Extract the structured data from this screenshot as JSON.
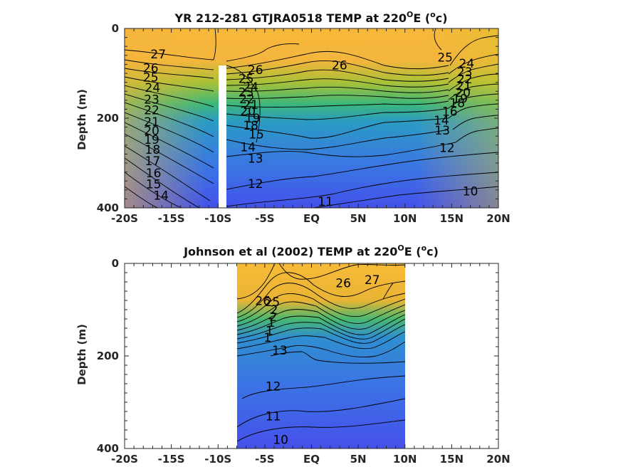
{
  "chart_data": [
    {
      "type": "contour",
      "title_parts": [
        "YR 212-281 GTJRA0518 TEMP at 220",
        "O",
        "E (",
        "o",
        "c)"
      ],
      "ylabel": "Depth (m)",
      "xlim": [
        -20,
        20
      ],
      "ylim": [
        0,
        400
      ],
      "x_ticks": [
        -20,
        -15,
        -10,
        -5,
        0,
        5,
        10,
        15,
        20
      ],
      "x_tick_labels": [
        "-20S",
        "-15S",
        "-10S",
        "-5S",
        "EQ",
        "5N",
        "10N",
        "15N",
        "20N"
      ],
      "y_ticks": [
        0,
        200,
        400
      ],
      "y_tick_labels": [
        "0",
        "200",
        "400"
      ],
      "data_extent": {
        "x": [
          -20,
          20
        ],
        "depth": [
          0,
          390
        ]
      },
      "missing_column_lat": -10,
      "contour_levels": [
        10,
        11,
        12,
        13,
        14,
        15,
        16,
        17,
        18,
        19,
        20,
        21,
        22,
        23,
        24,
        25,
        26,
        27
      ],
      "contour_labels": [
        {
          "text": "27",
          "lat": -16.4,
          "depth": 57
        },
        {
          "text": "26",
          "lat": -17.2,
          "depth": 88
        },
        {
          "text": "25",
          "lat": -17.2,
          "depth": 109
        },
        {
          "text": "24",
          "lat": -17.0,
          "depth": 132
        },
        {
          "text": "23",
          "lat": -17.1,
          "depth": 158
        },
        {
          "text": "22",
          "lat": -17.1,
          "depth": 182
        },
        {
          "text": "21",
          "lat": -17.1,
          "depth": 208
        },
        {
          "text": "20",
          "lat": -17.1,
          "depth": 228
        },
        {
          "text": "19",
          "lat": -17.1,
          "depth": 248
        },
        {
          "text": "18",
          "lat": -17.0,
          "depth": 270
        },
        {
          "text": "17",
          "lat": -17.0,
          "depth": 295
        },
        {
          "text": "16",
          "lat": -16.9,
          "depth": 322
        },
        {
          "text": "15",
          "lat": -16.9,
          "depth": 347
        },
        {
          "text": "14",
          "lat": -16.1,
          "depth": 372
        },
        {
          "text": "26",
          "lat": -6.0,
          "depth": 92
        },
        {
          "text": "25",
          "lat": -7.0,
          "depth": 112
        },
        {
          "text": "24",
          "lat": -6.5,
          "depth": 130
        },
        {
          "text": "23",
          "lat": -7.0,
          "depth": 142
        },
        {
          "text": "22",
          "lat": -6.9,
          "depth": 157
        },
        {
          "text": "21",
          "lat": -6.5,
          "depth": 170
        },
        {
          "text": "20",
          "lat": -6.8,
          "depth": 184
        },
        {
          "text": "19",
          "lat": -6.3,
          "depth": 200
        },
        {
          "text": "18",
          "lat": -6.5,
          "depth": 216
        },
        {
          "text": "15",
          "lat": -5.9,
          "depth": 236
        },
        {
          "text": "14",
          "lat": -6.8,
          "depth": 264
        },
        {
          "text": "13",
          "lat": -6.0,
          "depth": 290
        },
        {
          "text": "12",
          "lat": -6.0,
          "depth": 346
        },
        {
          "text": "11",
          "lat": 1.5,
          "depth": 386
        },
        {
          "text": "26",
          "lat": 3.0,
          "depth": 82
        },
        {
          "text": "25",
          "lat": 14.3,
          "depth": 64
        },
        {
          "text": "24",
          "lat": 16.6,
          "depth": 78
        },
        {
          "text": "23",
          "lat": 16.4,
          "depth": 97
        },
        {
          "text": "22",
          "lat": 16.4,
          "depth": 113
        },
        {
          "text": "21",
          "lat": 16.3,
          "depth": 128
        },
        {
          "text": "20",
          "lat": 16.2,
          "depth": 143
        },
        {
          "text": "19",
          "lat": 15.9,
          "depth": 156
        },
        {
          "text": "18",
          "lat": 15.6,
          "depth": 166
        },
        {
          "text": "16",
          "lat": 14.8,
          "depth": 185
        },
        {
          "text": "14",
          "lat": 13.9,
          "depth": 205
        },
        {
          "text": "13",
          "lat": 14.0,
          "depth": 227
        },
        {
          "text": "12",
          "lat": 14.5,
          "depth": 266
        },
        {
          "text": "10",
          "lat": 17.0,
          "depth": 363
        }
      ]
    },
    {
      "type": "contour",
      "title_parts": [
        "Johnson et al (2002) TEMP at 220",
        "O",
        "E (",
        "o",
        "c)"
      ],
      "ylabel": "Depth (m)",
      "xlim": [
        -20,
        20
      ],
      "ylim": [
        0,
        400
      ],
      "x_ticks": [
        -20,
        -15,
        -10,
        -5,
        0,
        5,
        10,
        15,
        20
      ],
      "x_tick_labels": [
        "-20S",
        "-15S",
        "-10S",
        "-5S",
        "EQ",
        "5N",
        "10N",
        "15N",
        "20N"
      ],
      "y_ticks": [
        0,
        200,
        400
      ],
      "y_tick_labels": [
        "0",
        "200",
        "400"
      ],
      "data_extent": {
        "x": [
          -8,
          10
        ],
        "depth": [
          0,
          400
        ]
      },
      "contour_levels": [
        10,
        11,
        12,
        13,
        14,
        15,
        16,
        17,
        18,
        19,
        20,
        21,
        22,
        23,
        24,
        25,
        26,
        27
      ],
      "contour_labels": [
        {
          "text": "27",
          "lat": 6.5,
          "depth": 35
        },
        {
          "text": "26",
          "lat": 3.4,
          "depth": 42
        },
        {
          "text": "26",
          "lat": -5.2,
          "depth": 81
        },
        {
          "text": "25",
          "lat": -4.2,
          "depth": 83
        },
        {
          "text": "2",
          "lat": -4.0,
          "depth": 100
        },
        {
          "text": "2",
          "lat": -4.1,
          "depth": 115
        },
        {
          "text": "1",
          "lat": -4.3,
          "depth": 128
        },
        {
          "text": "1",
          "lat": -4.5,
          "depth": 145
        },
        {
          "text": "1",
          "lat": -4.7,
          "depth": 160
        },
        {
          "text": "13",
          "lat": -3.4,
          "depth": 188
        },
        {
          "text": "12",
          "lat": -4.1,
          "depth": 265
        },
        {
          "text": "11",
          "lat": -4.1,
          "depth": 330
        },
        {
          "text": "10",
          "lat": -3.3,
          "depth": 381
        }
      ]
    }
  ]
}
